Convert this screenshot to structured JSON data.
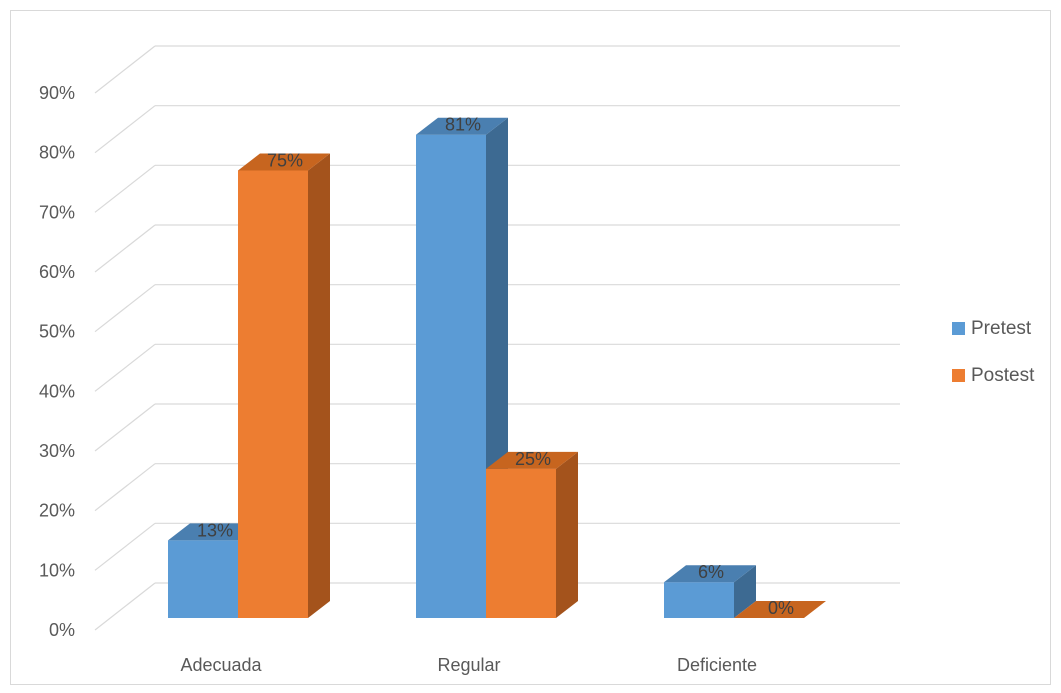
{
  "chart_data": {
    "type": "bar",
    "categories": [
      "Adecuada",
      "Regular",
      "Deficiente"
    ],
    "series": [
      {
        "name": "Pretest",
        "values": [
          13,
          81,
          6
        ],
        "labels": [
          "13%",
          "81%",
          "6%"
        ],
        "color": "#5b9bd5",
        "side_color": "#3d6a92",
        "top_color": "#4a7fb0"
      },
      {
        "name": "Postest",
        "values": [
          75,
          25,
          0
        ],
        "labels": [
          "75%",
          "25%",
          "0%"
        ],
        "color": "#ed7d31",
        "side_color": "#a4531c",
        "top_color": "#c7651f"
      }
    ],
    "y_ticks": [
      "0%",
      "10%",
      "20%",
      "30%",
      "40%",
      "50%",
      "60%",
      "70%",
      "80%",
      "90%"
    ],
    "ylim": [
      0,
      90
    ],
    "grid": true,
    "legend_position": "right",
    "gridline_color": "#d9d9d9"
  }
}
